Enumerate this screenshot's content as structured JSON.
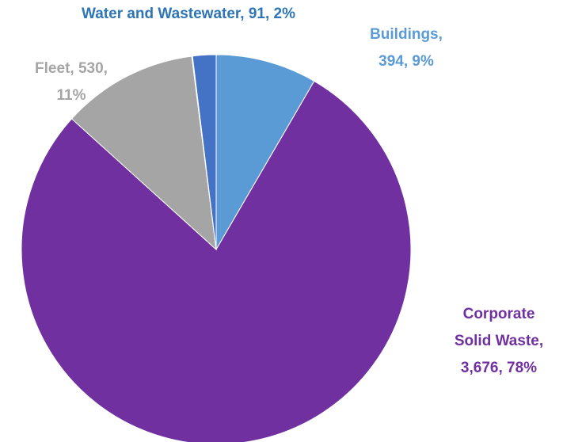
{
  "chart_data": {
    "type": "pie",
    "values": [
      394,
      3676,
      530,
      3,
      91
    ],
    "colors": [
      "#5b9bd5",
      "#7030a0",
      "#a5a5a5",
      "#ffc000",
      "#4472c4"
    ],
    "data_labels": [
      [
        "Buildings,",
        "394, 9%"
      ],
      [
        "Corporate",
        "Solid Waste,",
        "3,676, 78%"
      ],
      [
        "Fleet, 530,",
        "11%"
      ],
      null,
      [
        "Water and Wastewater, 91, 2%"
      ]
    ],
    "label_colors": [
      "#5b9bd5",
      "#7030a0",
      "#a5a5a5",
      null,
      "#2e75b6"
    ]
  }
}
